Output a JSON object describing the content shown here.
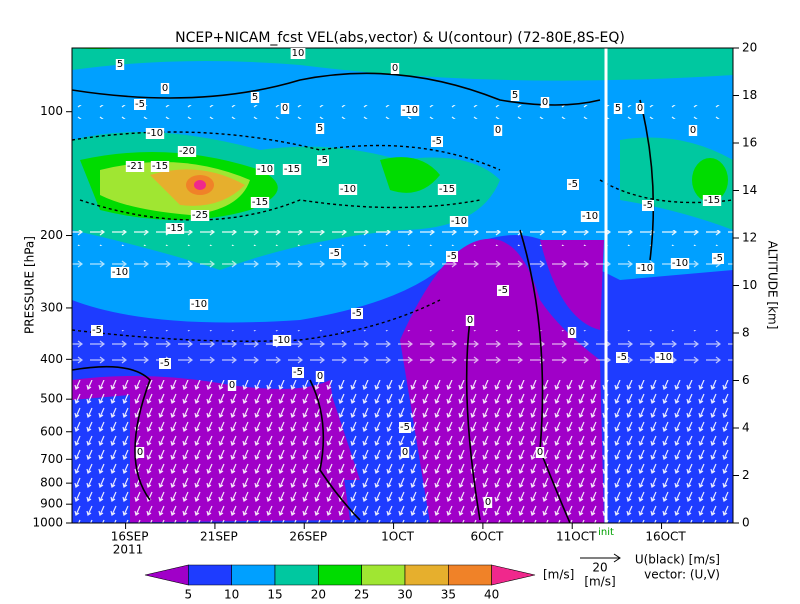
{
  "chart_data": {
    "type": "contour",
    "title": "NCEP+NICAM_fcst VEL(abs,vector) & U(contour)   (72-80E,8S-EQ)",
    "ylabel": "PRESSURE [hPa]",
    "y2label": "ALTITUDE [km]",
    "xlim": [
      "2011-09-13",
      "2011-10-20"
    ],
    "xticks": [
      {
        "value": "2011-09-16",
        "label": "16SEP"
      },
      {
        "value": "2011-09-21",
        "label": "21SEP"
      },
      {
        "value": "2011-09-26",
        "label": "26SEP"
      },
      {
        "value": "2011-10-01",
        "label": "1OCT"
      },
      {
        "value": "2011-10-06",
        "label": "6OCT"
      },
      {
        "value": "2011-10-11",
        "label": "11OCT"
      },
      {
        "value": "2011-10-16",
        "label": "16OCT"
      }
    ],
    "year": "2011",
    "ylim": [
      1000,
      70
    ],
    "log_y": true,
    "yticks": [
      100,
      200,
      300,
      400,
      500,
      600,
      700,
      800,
      900,
      1000
    ],
    "y2lim": [
      0,
      20
    ],
    "y2ticks": [
      0,
      2,
      4,
      6,
      8,
      10,
      12,
      14,
      16,
      18,
      20
    ],
    "init_label": "init",
    "colorbar": {
      "levels": [
        5,
        10,
        15,
        20,
        25,
        30,
        35,
        40
      ],
      "colors": [
        "#a000c8",
        "#1e3cff",
        "#00a0ff",
        "#00c8a0",
        "#00dc00",
        "#a0e632",
        "#e6af2d",
        "#f08228",
        "#f0288c"
      ],
      "unit": "[m/s]"
    },
    "vector_key": {
      "value": "20",
      "unit": "[m/s]"
    },
    "legend_text": [
      "U(black) [m/s]",
      "vector: (U,V)"
    ],
    "contour_labels": [
      5,
      0,
      -5,
      5,
      0,
      5,
      0,
      10,
      -10,
      5,
      0,
      0,
      -5,
      -10,
      -20,
      -21,
      -15,
      -10,
      -15,
      -15,
      -25,
      -15,
      -5,
      -10,
      -15,
      -10,
      -5,
      -5,
      -10,
      -10,
      -5,
      -5,
      -10,
      -5,
      -5,
      0,
      0,
      0,
      -5,
      0,
      -5,
      0,
      0,
      0,
      0,
      -5,
      -10,
      5,
      0,
      -5,
      -5,
      -10,
      -10,
      -10,
      -15,
      -5,
      0
    ]
  }
}
